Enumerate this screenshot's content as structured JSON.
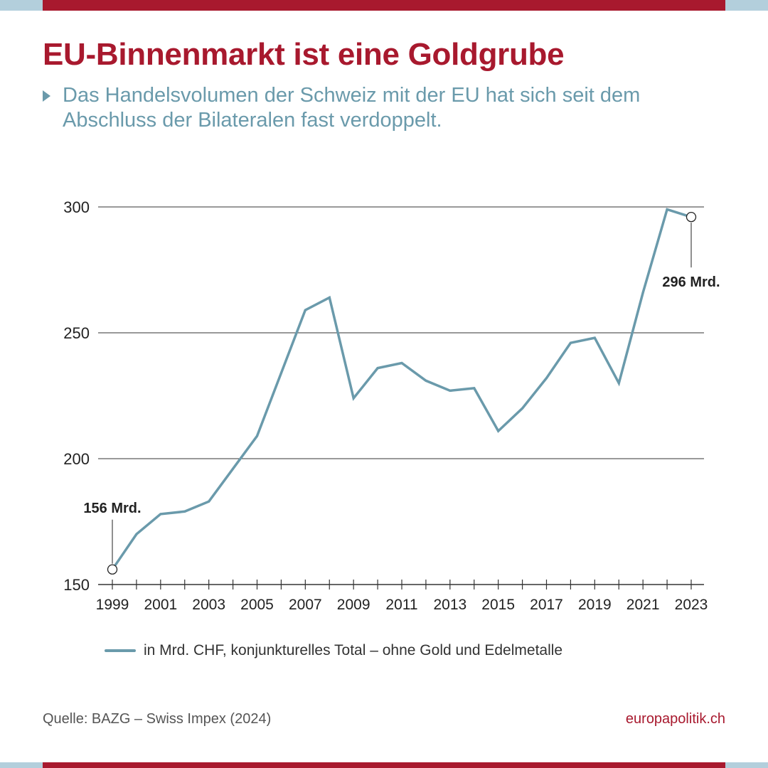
{
  "colors": {
    "accent_red": "#a8192e",
    "teal": "#6a9aab",
    "light_blue": "#b3cfdc",
    "text_dark": "#222222",
    "grid": "#333333"
  },
  "header": {
    "title": "EU-Binnenmarkt ist eine Goldgrube",
    "subtitle_line1": "Das Handelsvolumen der Schweiz mit der EU hat sich seit dem",
    "subtitle_line2": "Abschluss der Bilateralen fast verdoppelt."
  },
  "chart_data": {
    "type": "line",
    "title": "EU-Binnenmarkt ist eine Goldgrube",
    "xlabel": "",
    "ylabel": "",
    "ylim": [
      150,
      300
    ],
    "yticks": [
      150,
      200,
      250,
      300
    ],
    "ytick_labels": [
      "150",
      "200",
      "250",
      "300"
    ],
    "xlim": [
      1999,
      2023
    ],
    "xtick_labels": [
      "1999",
      "2001",
      "2003",
      "2005",
      "2007",
      "2009",
      "2011",
      "2013",
      "2015",
      "2017",
      "2019",
      "2021",
      "2023"
    ],
    "grid": true,
    "legend_position": "bottom",
    "series": [
      {
        "name": "in Mrd. CHF, konjunkturelles Total – ohne Gold und Edelmetalle",
        "x": [
          1999,
          2000,
          2001,
          2002,
          2003,
          2004,
          2005,
          2006,
          2007,
          2008,
          2009,
          2010,
          2011,
          2012,
          2013,
          2014,
          2015,
          2016,
          2017,
          2018,
          2019,
          2020,
          2021,
          2022,
          2023
        ],
        "values": [
          156,
          170,
          178,
          179,
          183,
          196,
          209,
          234,
          259,
          264,
          224,
          236,
          238,
          231,
          227,
          228,
          211,
          220,
          232,
          246,
          248,
          230,
          266,
          299,
          296
        ]
      }
    ],
    "annotations": [
      {
        "x": 1999,
        "y": 156,
        "label": "156 Mrd."
      },
      {
        "x": 2023,
        "y": 296,
        "label": "296 Mrd."
      }
    ]
  },
  "legend": {
    "label": "in Mrd. CHF, konjunkturelles Total – ohne Gold und Edelmetalle"
  },
  "footer": {
    "source": "Quelle: BAZG – Swiss Impex (2024)",
    "brand": "europapolitik.ch"
  }
}
